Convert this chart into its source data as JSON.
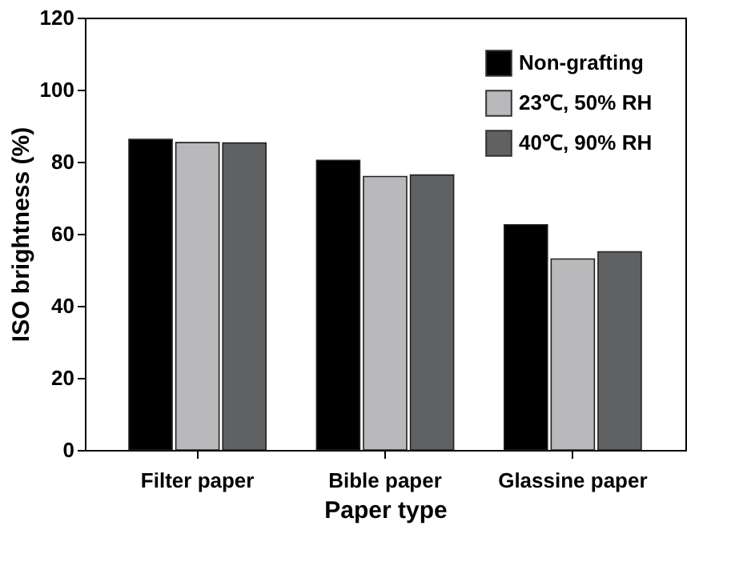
{
  "chart_data": {
    "type": "bar",
    "xlabel": "Paper type",
    "ylabel": "ISO brightness (%)",
    "categories": [
      "Filter paper",
      "Bible paper",
      "Glassine paper"
    ],
    "series": [
      {
        "name": "Non-grafting",
        "color": "#000000",
        "values": [
          86.2,
          80.4,
          62.5
        ]
      },
      {
        "name": "23℃, 50% RH",
        "color": "#b9b9bb",
        "values": [
          85.3,
          75.9,
          53.0
        ]
      },
      {
        "name": "40℃, 90% RH",
        "color": "#5f6163",
        "values": [
          85.2,
          76.3,
          55.0
        ]
      }
    ],
    "ylim": [
      0,
      120
    ],
    "yticks": [
      0,
      20,
      40,
      60,
      80,
      100,
      120
    ],
    "grid": false,
    "legend": "top right"
  }
}
